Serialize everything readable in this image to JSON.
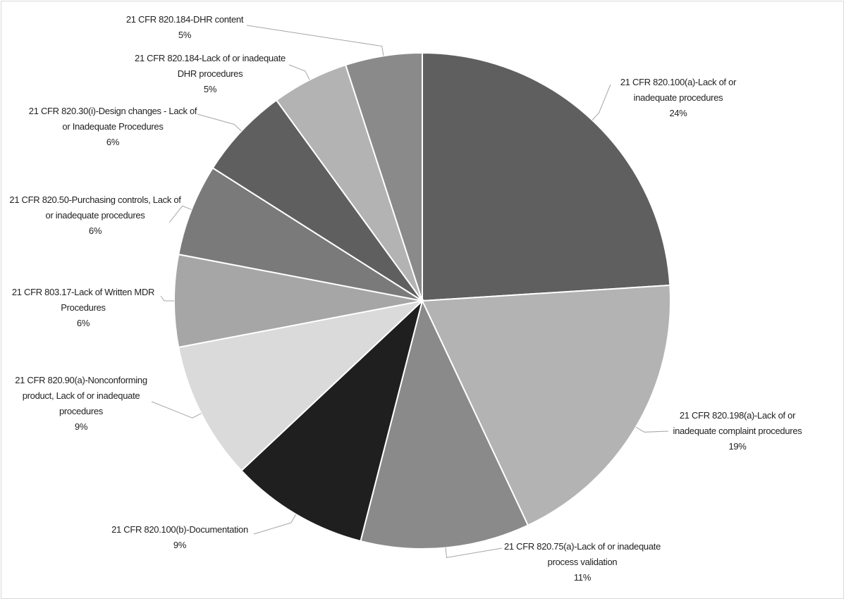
{
  "chart_data": {
    "type": "pie",
    "categories": [
      "21 CFR 820.100(a)-Lack of or inadequate procedures",
      "21 CFR 820.198(a)-Lack of or inadequate complaint procedures",
      "21 CFR 820.75(a)-Lack of or inadequate process validation",
      "21 CFR 820.100(b)-Documentation",
      "21 CFR 820.90(a)-Nonconforming product,  Lack of or inadequate procedures",
      "21 CFR 803.17-Lack of Written MDR Procedures",
      "21 CFR 820.50-Purchasing controls, Lack of or inadequate procedures",
      "21 CFR 820.30(i)-Design changes - Lack of or Inadequate Procedures",
      "21 CFR 820.184-Lack of or inadequate DHR procedures",
      "21 CFR 820.184-DHR content"
    ],
    "values": [
      24,
      19,
      11,
      9,
      9,
      6,
      6,
      6,
      5,
      5
    ],
    "value_labels": [
      "24%",
      "19%",
      "11%",
      "9%",
      "9%",
      "6%",
      "6%",
      "6%",
      "5%",
      "5%"
    ],
    "colors": [
      "#5f5f5f",
      "#b3b3b3",
      "#8a8a8a",
      "#1f1f1f",
      "#dadada",
      "#a6a6a6",
      "#7a7a7a",
      "#5f5f5f",
      "#b3b3b3",
      "#8a8a8a"
    ]
  }
}
